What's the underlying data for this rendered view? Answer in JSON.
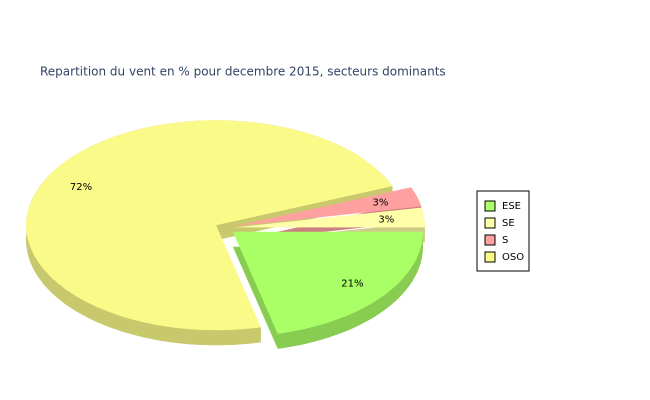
{
  "chart_data": {
    "type": "pie",
    "title": "Repartition du vent en % pour decembre 2015, secteurs dominants",
    "categories": [
      "ESE",
      "SE",
      "S",
      "OSO"
    ],
    "values": [
      21,
      3,
      3,
      72
    ],
    "value_labels": [
      "21%",
      "3%",
      "3%",
      "72%"
    ],
    "colors": [
      "#aaff66",
      "#ffffaa",
      "#ffa0a0",
      "#fafa88"
    ],
    "legend": "right"
  }
}
